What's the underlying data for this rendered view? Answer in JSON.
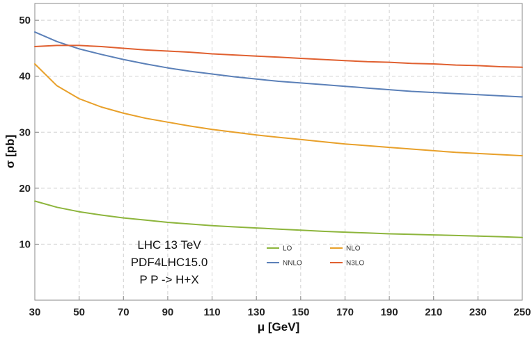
{
  "chart_data": {
    "type": "line",
    "title": "",
    "xlabel": "μ [GeV]",
    "ylabel": "σ [pb]",
    "xlim": [
      30,
      250
    ],
    "ylim": [
      0,
      53
    ],
    "xticks": [
      30,
      50,
      70,
      90,
      110,
      130,
      150,
      170,
      190,
      210,
      230,
      250
    ],
    "yticks": [
      10,
      20,
      30,
      40,
      50
    ],
    "grid": true,
    "annotations": [
      "LHC 13 TeV",
      "PDF4LHC15.0",
      "P P -> H+X"
    ],
    "legend_position": "bottom-center",
    "x": [
      30,
      40,
      50,
      60,
      70,
      80,
      90,
      100,
      110,
      120,
      130,
      140,
      150,
      160,
      170,
      180,
      190,
      200,
      210,
      220,
      230,
      240,
      250
    ],
    "series": [
      {
        "name": "LO",
        "color": "#8db53c",
        "values": [
          17.7,
          16.6,
          15.8,
          15.2,
          14.7,
          14.3,
          13.9,
          13.6,
          13.3,
          13.1,
          12.9,
          12.7,
          12.5,
          12.3,
          12.15,
          12.0,
          11.85,
          11.75,
          11.65,
          11.55,
          11.45,
          11.35,
          11.2
        ]
      },
      {
        "name": "NLO",
        "color": "#e8a02a",
        "values": [
          42.2,
          38.3,
          36.0,
          34.5,
          33.4,
          32.5,
          31.8,
          31.1,
          30.5,
          30.0,
          29.5,
          29.1,
          28.7,
          28.3,
          27.9,
          27.6,
          27.3,
          27.0,
          26.7,
          26.4,
          26.2,
          26.0,
          25.8
        ]
      },
      {
        "name": "NNLO",
        "color": "#5b80b8",
        "values": [
          47.9,
          46.2,
          44.9,
          43.9,
          43.0,
          42.2,
          41.5,
          40.9,
          40.4,
          39.9,
          39.5,
          39.1,
          38.8,
          38.5,
          38.2,
          37.9,
          37.6,
          37.3,
          37.1,
          36.9,
          36.7,
          36.5,
          36.3
        ]
      },
      {
        "name": "N3LO",
        "color": "#e06030",
        "values": [
          45.3,
          45.5,
          45.5,
          45.3,
          45.0,
          44.7,
          44.5,
          44.3,
          44.0,
          43.8,
          43.6,
          43.4,
          43.2,
          43.0,
          42.8,
          42.6,
          42.5,
          42.3,
          42.2,
          42.0,
          41.9,
          41.7,
          41.6
        ]
      }
    ]
  }
}
